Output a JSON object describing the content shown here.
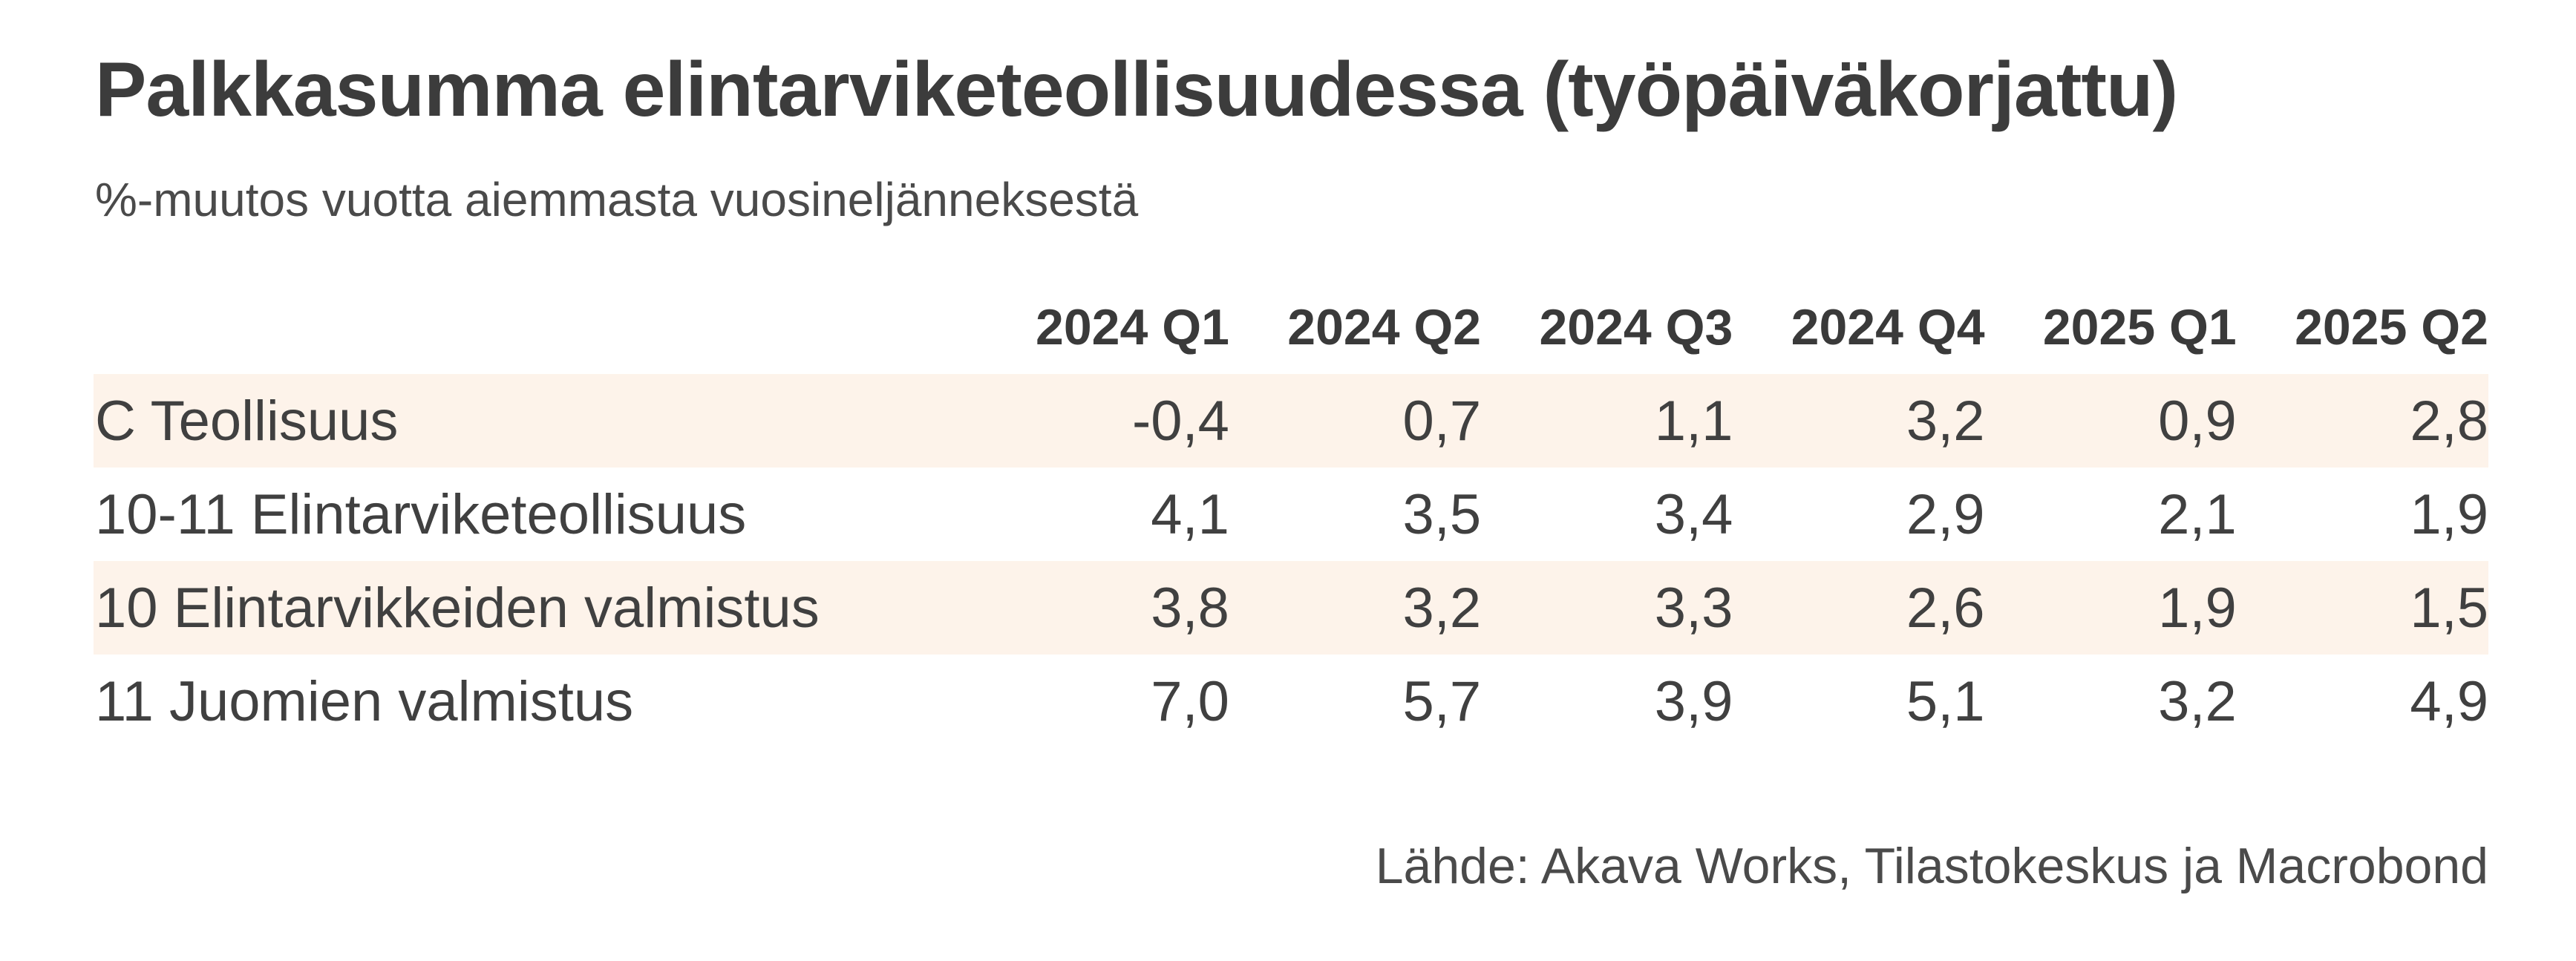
{
  "chart_data": {
    "type": "table",
    "title": "Palkkasumma elintarviketeollisuudessa (työpäiväkorjattu)",
    "subtitle": "%-muutos vuotta aiemmasta vuosineljänneksestä",
    "columns": [
      "2024 Q1",
      "2024 Q2",
      "2024 Q3",
      "2024 Q4",
      "2025 Q1",
      "2025 Q2"
    ],
    "rows": [
      {
        "label": "C Teollisuus",
        "values": [
          "-0,4",
          "0,7",
          "1,1",
          "3,2",
          "0,9",
          "2,8"
        ]
      },
      {
        "label": "10-11 Elintarviketeollisuus",
        "values": [
          "4,1",
          "3,5",
          "3,4",
          "2,9",
          "2,1",
          "1,9"
        ]
      },
      {
        "label": "10 Elintarvikkeiden valmistus",
        "values": [
          "3,8",
          "3,2",
          "3,3",
          "2,6",
          "1,9",
          "1,5"
        ]
      },
      {
        "label": "11 Juomien valmistus",
        "values": [
          "7,0",
          "5,7",
          "3,9",
          "5,1",
          "3,2",
          "4,9"
        ]
      }
    ],
    "source": "Lähde: Akava Works, Tilastokeskus ja Macrobond",
    "colors": {
      "row_shade": "#fdf3ea",
      "text": "#404040"
    }
  }
}
